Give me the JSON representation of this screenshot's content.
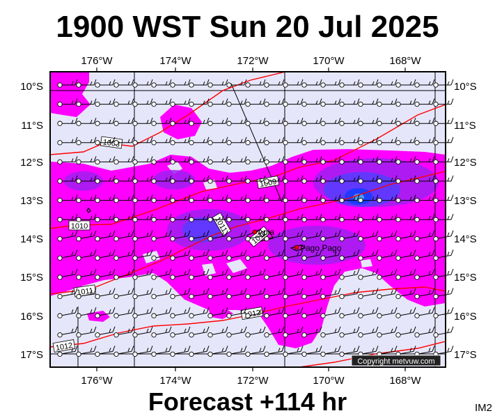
{
  "title": "1900 WST Sun 20 Jul 2025",
  "footer": "Forecast +114 hr",
  "model_label": "IM2",
  "copyright": "Copyright metvuw.com",
  "lon_labels": [
    "176°W",
    "174°W",
    "172°W",
    "170°W",
    "168°W"
  ],
  "lat_labels": [
    "10°S",
    "11°S",
    "12°S",
    "13°S",
    "14°S",
    "15°S",
    "16°S",
    "17°S"
  ],
  "isobars": [
    "1008",
    "1009",
    "1010",
    "1011",
    "1011",
    "1011",
    "1012",
    "1012"
  ],
  "places": [
    "Apia",
    "Pago Pago"
  ],
  "colors": {
    "background": "#e6e6fa",
    "magenta": "#ff00ff",
    "violet": "#a020f0",
    "blue": "#5a3cff",
    "deep_blue": "#1e3cff",
    "isobar": "#ff0000"
  }
}
